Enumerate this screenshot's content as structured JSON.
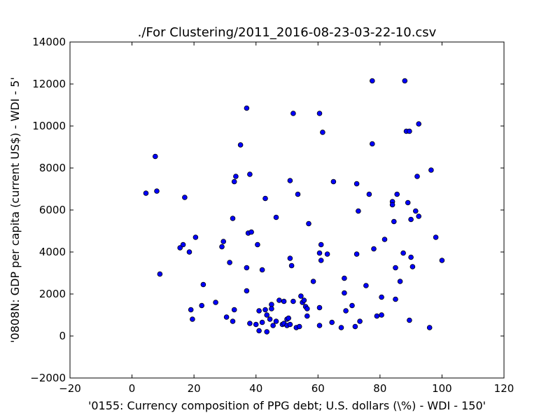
{
  "chart_data": {
    "type": "scatter",
    "title": "./For Clustering/2011_2016-08-23-03-22-10.csv",
    "xlabel": "'0155: Currency composition of PPG debt; U.S. dollars  (\\%) - WDI - 150'",
    "ylabel": "'0808N: GDP per capita  (current US$) - WDI - 5'",
    "xlim": [
      -20,
      120
    ],
    "ylim": [
      -2000,
      14000
    ],
    "xticks": [
      "−20",
      "0",
      "20",
      "40",
      "60",
      "80",
      "100",
      "120"
    ],
    "yticks": [
      "−2000",
      "0",
      "2000",
      "4000",
      "6000",
      "8000",
      "10000",
      "12000",
      "14000"
    ],
    "xtick_values": [
      -20,
      0,
      20,
      40,
      60,
      80,
      100,
      120
    ],
    "ytick_values": [
      -2000,
      0,
      2000,
      4000,
      6000,
      8000,
      10000,
      12000,
      14000
    ],
    "grid": false,
    "marker_color": "#0000ff",
    "marker_edge_color": "#000000",
    "points": [
      [
        4.5,
        6800
      ],
      [
        7.5,
        8550
      ],
      [
        8,
        6900
      ],
      [
        9,
        2950
      ],
      [
        15.5,
        4200
      ],
      [
        16.5,
        4350
      ],
      [
        17,
        6600
      ],
      [
        18.5,
        4000
      ],
      [
        19,
        1250
      ],
      [
        19.5,
        800
      ],
      [
        20.5,
        4700
      ],
      [
        22.5,
        1450
      ],
      [
        23,
        2450
      ],
      [
        27,
        1600
      ],
      [
        29,
        4250
      ],
      [
        29.5,
        4500
      ],
      [
        30.5,
        900
      ],
      [
        31.5,
        3500
      ],
      [
        32.5,
        5600
      ],
      [
        32.5,
        700
      ],
      [
        33,
        7350
      ],
      [
        33.5,
        7600
      ],
      [
        33,
        1250
      ],
      [
        35,
        9100
      ],
      [
        37,
        10850
      ],
      [
        37,
        3250
      ],
      [
        37,
        2150
      ],
      [
        37.5,
        4900
      ],
      [
        38,
        7700
      ],
      [
        38,
        600
      ],
      [
        38.5,
        4950
      ],
      [
        40,
        550
      ],
      [
        40.5,
        4350
      ],
      [
        41,
        250
      ],
      [
        41,
        1200
      ],
      [
        42,
        650
      ],
      [
        42,
        3150
      ],
      [
        43,
        1250
      ],
      [
        43,
        6550
      ],
      [
        43.5,
        200
      ],
      [
        43.5,
        1000
      ],
      [
        44.5,
        800
      ],
      [
        45,
        1500
      ],
      [
        45,
        1300
      ],
      [
        45.5,
        500
      ],
      [
        46.5,
        5650
      ],
      [
        46.5,
        700
      ],
      [
        47.5,
        1700
      ],
      [
        48.5,
        550
      ],
      [
        49,
        1650
      ],
      [
        49,
        600
      ],
      [
        50,
        500
      ],
      [
        50,
        800
      ],
      [
        50.5,
        850
      ],
      [
        51,
        550
      ],
      [
        51,
        3700
      ],
      [
        51,
        7400
      ],
      [
        51.5,
        3350
      ],
      [
        52,
        10600
      ],
      [
        52,
        1650
      ],
      [
        53,
        400
      ],
      [
        53.5,
        6750
      ],
      [
        54,
        450
      ],
      [
        54.5,
        1900
      ],
      [
        55,
        1600
      ],
      [
        55.5,
        1700
      ],
      [
        56,
        1400
      ],
      [
        56.5,
        1300
      ],
      [
        56.5,
        950
      ],
      [
        57,
        5350
      ],
      [
        58.5,
        2600
      ],
      [
        60.5,
        3950
      ],
      [
        60.5,
        500
      ],
      [
        60.5,
        10600
      ],
      [
        60.5,
        1350
      ],
      [
        61,
        4350
      ],
      [
        61,
        3600
      ],
      [
        61.5,
        9700
      ],
      [
        63,
        3900
      ],
      [
        64.5,
        650
      ],
      [
        65,
        7350
      ],
      [
        67.5,
        400
      ],
      [
        68.5,
        2750
      ],
      [
        68.5,
        2050
      ],
      [
        69,
        1200
      ],
      [
        71,
        1450
      ],
      [
        72,
        450
      ],
      [
        72.5,
        3900
      ],
      [
        72.5,
        7250
      ],
      [
        73,
        5950
      ],
      [
        73.5,
        700
      ],
      [
        75.5,
        2400
      ],
      [
        76.5,
        6750
      ],
      [
        77.5,
        12150
      ],
      [
        77.5,
        9150
      ],
      [
        78,
        4150
      ],
      [
        79,
        950
      ],
      [
        80.5,
        1850
      ],
      [
        80.5,
        1000
      ],
      [
        81.5,
        4600
      ],
      [
        84,
        6400
      ],
      [
        84,
        6250
      ],
      [
        84.5,
        5450
      ],
      [
        85,
        1750
      ],
      [
        85,
        3250
      ],
      [
        85.5,
        6750
      ],
      [
        86.5,
        2600
      ],
      [
        87.5,
        3950
      ],
      [
        88,
        12150
      ],
      [
        88.5,
        9750
      ],
      [
        89,
        6350
      ],
      [
        89.5,
        9750
      ],
      [
        89.5,
        750
      ],
      [
        90,
        3750
      ],
      [
        90,
        5550
      ],
      [
        90.5,
        3300
      ],
      [
        91.5,
        5950
      ],
      [
        92,
        7600
      ],
      [
        92.5,
        5700
      ],
      [
        92.5,
        10100
      ],
      [
        96,
        400
      ],
      [
        96.5,
        7900
      ],
      [
        98,
        4700
      ],
      [
        100,
        3600
      ]
    ]
  }
}
